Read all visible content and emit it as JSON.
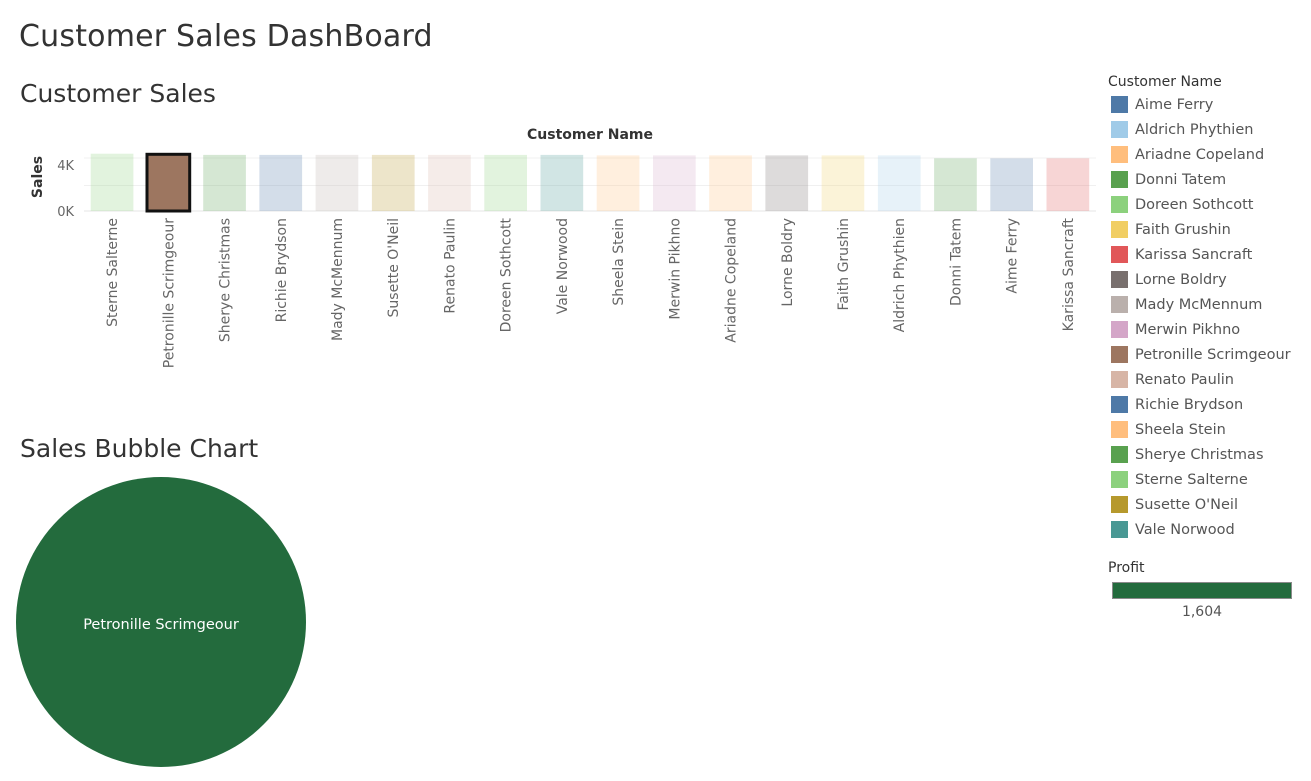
{
  "dashboard": {
    "title": "Customer Sales DashBoard"
  },
  "bar_section": {
    "title": "Customer Sales"
  },
  "bubble_section": {
    "title": "Sales Bubble Chart"
  },
  "legend": {
    "title": "Customer Name",
    "items": [
      {
        "label": "Aime Ferry",
        "color": "#4e79a7"
      },
      {
        "label": "Aldrich Phythien",
        "color": "#a0cbe8"
      },
      {
        "label": "Ariadne Copeland",
        "color": "#ffbe7d"
      },
      {
        "label": "Donni Tatem",
        "color": "#59a14f"
      },
      {
        "label": "Doreen Sothcott",
        "color": "#8cd17d"
      },
      {
        "label": "Faith Grushin",
        "color": "#f1ce63"
      },
      {
        "label": "Karissa Sancraft",
        "color": "#e15759"
      },
      {
        "label": "Lorne Boldry",
        "color": "#79706e"
      },
      {
        "label": "Mady McMennum",
        "color": "#bab0ac"
      },
      {
        "label": "Merwin Pikhno",
        "color": "#d4a6c8"
      },
      {
        "label": "Petronille Scrimgeour",
        "color": "#9d7660"
      },
      {
        "label": "Renato Paulin",
        "color": "#d7b5a6"
      },
      {
        "label": "Richie Brydson",
        "color": "#4e79a7"
      },
      {
        "label": "Sheela Stein",
        "color": "#ffbe7d"
      },
      {
        "label": "Sherye Christmas",
        "color": "#59a14f"
      },
      {
        "label": "Sterne Salterne",
        "color": "#8cd17d"
      },
      {
        "label": "Susette O'Neil",
        "color": "#b6992d"
      },
      {
        "label": "Vale Norwood",
        "color": "#499894"
      }
    ]
  },
  "profit_legend": {
    "title": "Profit",
    "value": "1,604",
    "color": "#236b3d"
  },
  "chart_data": [
    {
      "type": "bar",
      "title": "Customer Sales",
      "xlabel": "Customer Name",
      "ylabel": "Sales",
      "yticks": [
        "4K",
        "0K"
      ],
      "ylim": [
        0,
        5500
      ],
      "categories": [
        "Sterne Salterne",
        "Petronille Scrimgeour",
        "Sherye Christmas",
        "Richie Brydson",
        "Mady McMennum",
        "Susette O'Neil",
        "Renato Paulin",
        "Doreen Sothcott",
        "Vale Norwood",
        "Sheela Stein",
        "Merwin Pikhno",
        "Ariadne Copeland",
        "Lorne Boldry",
        "Faith Grushin",
        "Aldrich Phythien",
        "Donni Tatem",
        "Aime Ferry",
        "Karissa Sancraft"
      ],
      "values": [
        5000,
        4950,
        4900,
        4900,
        4900,
        4900,
        4900,
        4900,
        4900,
        4850,
        4850,
        4850,
        4850,
        4850,
        4850,
        4600,
        4600,
        4600
      ],
      "colors": [
        "#8cd17d",
        "#9d7660",
        "#59a14f",
        "#4e79a7",
        "#bab0ac",
        "#b6992d",
        "#d7b5a6",
        "#8cd17d",
        "#499894",
        "#ffbe7d",
        "#d4a6c8",
        "#ffbe7d",
        "#79706e",
        "#f1ce63",
        "#a0cbe8",
        "#59a14f",
        "#4e79a7",
        "#e15759"
      ],
      "highlighted": "Petronille Scrimgeour"
    },
    {
      "type": "scatter",
      "title": "Sales Bubble Chart",
      "points": [
        {
          "label": "Petronille Scrimgeour",
          "color": "#236b3d"
        }
      ]
    }
  ]
}
